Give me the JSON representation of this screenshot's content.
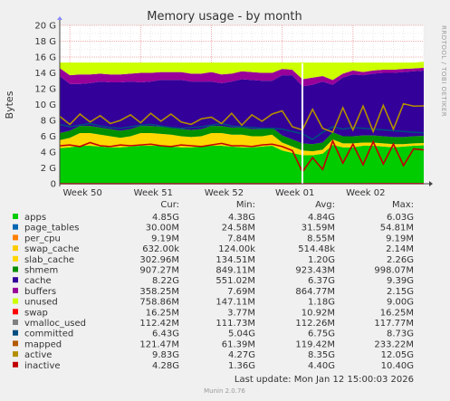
{
  "side_label": "RRDTOOL / TOBI OETIKER",
  "footer": {
    "last_update": "Last update: Mon Jan 12 15:00:03 2026",
    "munin": "Munin 2.0.76"
  },
  "legend_headers": {
    "cur": "Cur:",
    "min": "Min:",
    "avg": "Avg:",
    "max": "Max:"
  },
  "legend": [
    {
      "name": "apps",
      "color": "#00cc00",
      "cur": "4.85G",
      "min": "4.38G",
      "avg": "4.84G",
      "max": "6.03G"
    },
    {
      "name": "page_tables",
      "color": "#0066b3",
      "cur": "30.00M",
      "min": "24.58M",
      "avg": "31.59M",
      "max": "54.81M"
    },
    {
      "name": "per_cpu",
      "color": "#ff8000",
      "cur": "9.19M",
      "min": "7.84M",
      "avg": "8.55M",
      "max": "9.19M"
    },
    {
      "name": "swap_cache",
      "color": "#ffcc00",
      "cur": "632.00k",
      "min": "124.00k",
      "avg": "514.48k",
      "max": "2.14M"
    },
    {
      "name": "slab_cache",
      "color": "#ffd700",
      "cur": "302.96M",
      "min": "134.51M",
      "avg": "1.20G",
      "max": "2.26G"
    },
    {
      "name": "shmem",
      "color": "#008f00",
      "cur": "907.27M",
      "min": "849.11M",
      "avg": "923.43M",
      "max": "998.07M"
    },
    {
      "name": "cache",
      "color": "#330099",
      "cur": "8.22G",
      "min": "551.02M",
      "avg": "6.37G",
      "max": "9.39G"
    },
    {
      "name": "buffers",
      "color": "#990099",
      "cur": "358.25M",
      "min": "7.69M",
      "avg": "864.77M",
      "max": "2.15G"
    },
    {
      "name": "unused",
      "color": "#ccff00",
      "cur": "758.86M",
      "min": "147.11M",
      "avg": "1.18G",
      "max": "9.00G"
    },
    {
      "name": "swap",
      "color": "#ff0000",
      "cur": "16.25M",
      "min": "3.77M",
      "avg": "10.92M",
      "max": "16.25M"
    },
    {
      "name": "vmalloc_used",
      "color": "#808080",
      "cur": "112.42M",
      "min": "111.73M",
      "avg": "112.26M",
      "max": "117.77M"
    },
    {
      "name": "committed",
      "color": "#004d80",
      "cur": "6.43G",
      "min": "5.04G",
      "avg": "6.75G",
      "max": "8.73G"
    },
    {
      "name": "mapped",
      "color": "#b35a00",
      "cur": "121.47M",
      "min": "61.39M",
      "avg": "119.42M",
      "max": "233.22M"
    },
    {
      "name": "active",
      "color": "#b38f00",
      "cur": "9.83G",
      "min": "4.27G",
      "avg": "8.35G",
      "max": "12.05G"
    },
    {
      "name": "inactive",
      "color": "#c00000",
      "cur": "4.28G",
      "min": "1.36G",
      "avg": "4.40G",
      "max": "10.40G"
    }
  ],
  "chart_data": {
    "type": "area",
    "title": "Memory usage - by month",
    "ylabel": "Bytes",
    "ylim": [
      0,
      20
    ],
    "y_unit": "G",
    "y_ticks": [
      "0",
      "2 G",
      "4 G",
      "6 G",
      "8 G",
      "10 G",
      "12 G",
      "14 G",
      "16 G",
      "18 G",
      "20 G"
    ],
    "x_range": [
      "2025-12-07",
      "2026-01-12"
    ],
    "x_ticks": [
      {
        "label": "Week 50",
        "date": "2025-12-08"
      },
      {
        "label": "Week 51",
        "date": "2025-12-15"
      },
      {
        "label": "Week 52",
        "date": "2025-12-22"
      },
      {
        "label": "Week 01",
        "date": "2025-12-29"
      },
      {
        "label": "Week 02",
        "date": "2026-01-05"
      }
    ],
    "grid": true,
    "dates": [
      "2025-12-07",
      "2025-12-08",
      "2025-12-09",
      "2025-12-10",
      "2025-12-11",
      "2025-12-12",
      "2025-12-13",
      "2025-12-14",
      "2025-12-15",
      "2025-12-16",
      "2025-12-17",
      "2025-12-18",
      "2025-12-19",
      "2025-12-20",
      "2025-12-21",
      "2025-12-22",
      "2025-12-23",
      "2025-12-24",
      "2025-12-25",
      "2025-12-26",
      "2025-12-27",
      "2025-12-28",
      "2025-12-29",
      "2025-12-30",
      "2025-12-31",
      "2026-01-01",
      "2026-01-02",
      "2026-01-03",
      "2026-01-04",
      "2026-01-05",
      "2026-01-06",
      "2026-01-07",
      "2026-01-08",
      "2026-01-09",
      "2026-01-10",
      "2026-01-11",
      "2026-01-12"
    ],
    "stacked": [
      {
        "name": "apps",
        "values": [
          4.5,
          4.6,
          4.8,
          4.8,
          4.7,
          4.6,
          4.6,
          4.7,
          4.8,
          4.8,
          4.8,
          4.7,
          4.6,
          4.6,
          4.7,
          4.8,
          4.8,
          4.7,
          4.6,
          4.6,
          4.7,
          4.8,
          4.2,
          3.9,
          3.6,
          3.6,
          3.8,
          4.9,
          4.6,
          4.6,
          4.8,
          4.8,
          4.7,
          4.6,
          4.7,
          4.8,
          4.85
        ]
      },
      {
        "name": "slab_cache",
        "values": [
          1.0,
          1.2,
          1.6,
          1.6,
          1.5,
          1.4,
          1.2,
          1.3,
          1.6,
          1.6,
          1.5,
          1.5,
          1.4,
          1.3,
          1.3,
          1.6,
          1.6,
          1.5,
          1.6,
          1.4,
          1.3,
          1.4,
          1.0,
          0.8,
          0.6,
          0.5,
          0.5,
          0.7,
          0.5,
          0.5,
          0.4,
          0.4,
          0.4,
          0.4,
          0.3,
          0.3,
          0.3
        ]
      },
      {
        "name": "shmem",
        "values": [
          0.9,
          0.9,
          0.9,
          0.9,
          0.9,
          0.9,
          0.9,
          0.9,
          0.9,
          0.9,
          0.9,
          0.9,
          0.9,
          0.9,
          0.9,
          0.9,
          0.9,
          0.9,
          0.9,
          0.9,
          0.9,
          0.9,
          0.9,
          0.9,
          0.9,
          0.9,
          0.9,
          0.9,
          0.9,
          0.9,
          0.9,
          0.9,
          0.9,
          0.9,
          0.9,
          0.9,
          0.91
        ]
      },
      {
        "name": "cache",
        "values": [
          7.2,
          5.9,
          5.3,
          5.4,
          5.8,
          5.9,
          6.1,
          6.0,
          5.5,
          5.6,
          5.9,
          6.0,
          6.2,
          6.1,
          6.0,
          5.6,
          5.4,
          5.8,
          6.1,
          6.2,
          6.1,
          5.9,
          7.6,
          8.1,
          7.2,
          7.5,
          7.7,
          6.0,
          7.4,
          7.8,
          7.6,
          7.8,
          8.0,
          8.1,
          8.2,
          8.2,
          8.22
        ]
      },
      {
        "name": "buffers",
        "values": [
          1.0,
          1.1,
          1.2,
          1.1,
          1.0,
          1.0,
          1.0,
          1.0,
          1.2,
          1.1,
          1.0,
          1.0,
          1.0,
          1.0,
          1.0,
          1.2,
          1.1,
          1.0,
          1.0,
          1.0,
          1.0,
          1.0,
          0.8,
          0.7,
          0.9,
          0.9,
          0.7,
          0.6,
          0.5,
          0.5,
          0.4,
          0.4,
          0.4,
          0.4,
          0.4,
          0.36,
          0.36
        ]
      },
      {
        "name": "unused",
        "values": [
          0.7,
          1.6,
          1.5,
          1.5,
          1.4,
          1.5,
          1.5,
          1.4,
          1.3,
          1.3,
          1.2,
          1.2,
          1.2,
          1.4,
          1.4,
          1.2,
          1.5,
          1.4,
          1.1,
          1.2,
          1.3,
          1.3,
          0.8,
          0.9,
          2.1,
          1.9,
          1.7,
          2.2,
          1.4,
          1.0,
          1.2,
          1.0,
          0.9,
          0.9,
          0.8,
          0.74,
          0.76
        ]
      }
    ],
    "lines": [
      {
        "name": "committed",
        "values": [
          7.5,
          7.2,
          7.4,
          7.6,
          7.3,
          7.1,
          7.0,
          7.2,
          7.4,
          7.5,
          7.3,
          7.1,
          7.0,
          7.1,
          7.2,
          7.4,
          7.6,
          7.3,
          7.2,
          7.1,
          7.0,
          7.0,
          6.9,
          6.6,
          6.3,
          5.6,
          6.5,
          7.2,
          6.9,
          7.1,
          7.0,
          6.9,
          6.8,
          6.7,
          6.6,
          6.5,
          6.43
        ]
      },
      {
        "name": "active",
        "values": [
          8.5,
          7.5,
          8.8,
          7.8,
          8.6,
          7.6,
          8.0,
          8.7,
          7.7,
          8.9,
          7.9,
          8.8,
          7.8,
          7.5,
          8.2,
          8.4,
          7.6,
          8.9,
          7.4,
          8.7,
          7.9,
          8.8,
          9.2,
          7.2,
          6.8,
          9.4,
          7.0,
          6.5,
          9.6,
          6.8,
          9.8,
          6.6,
          9.9,
          6.9,
          10.1,
          9.8,
          9.83
        ]
      },
      {
        "name": "inactive",
        "values": [
          4.8,
          4.9,
          4.7,
          5.2,
          4.8,
          4.7,
          4.9,
          4.8,
          4.9,
          5.0,
          4.8,
          4.7,
          4.9,
          4.8,
          4.7,
          4.9,
          5.1,
          4.8,
          4.8,
          4.7,
          4.9,
          5.0,
          4.7,
          4.2,
          1.5,
          3.3,
          1.8,
          5.4,
          2.6,
          5.0,
          2.4,
          5.3,
          2.5,
          5.0,
          2.3,
          4.4,
          4.28
        ]
      },
      {
        "name": "swap",
        "values": [
          0.005,
          0.005,
          0.006,
          0.006,
          0.007,
          0.007,
          0.008,
          0.008,
          0.008,
          0.009,
          0.009,
          0.009,
          0.01,
          0.01,
          0.01,
          0.011,
          0.011,
          0.011,
          0.012,
          0.012,
          0.012,
          0.013,
          0.013,
          0.013,
          0.014,
          0.014,
          0.014,
          0.015,
          0.015,
          0.015,
          0.015,
          0.016,
          0.016,
          0.016,
          0.016,
          0.016,
          0.016
        ]
      }
    ],
    "marker_date": "2025-12-31"
  }
}
